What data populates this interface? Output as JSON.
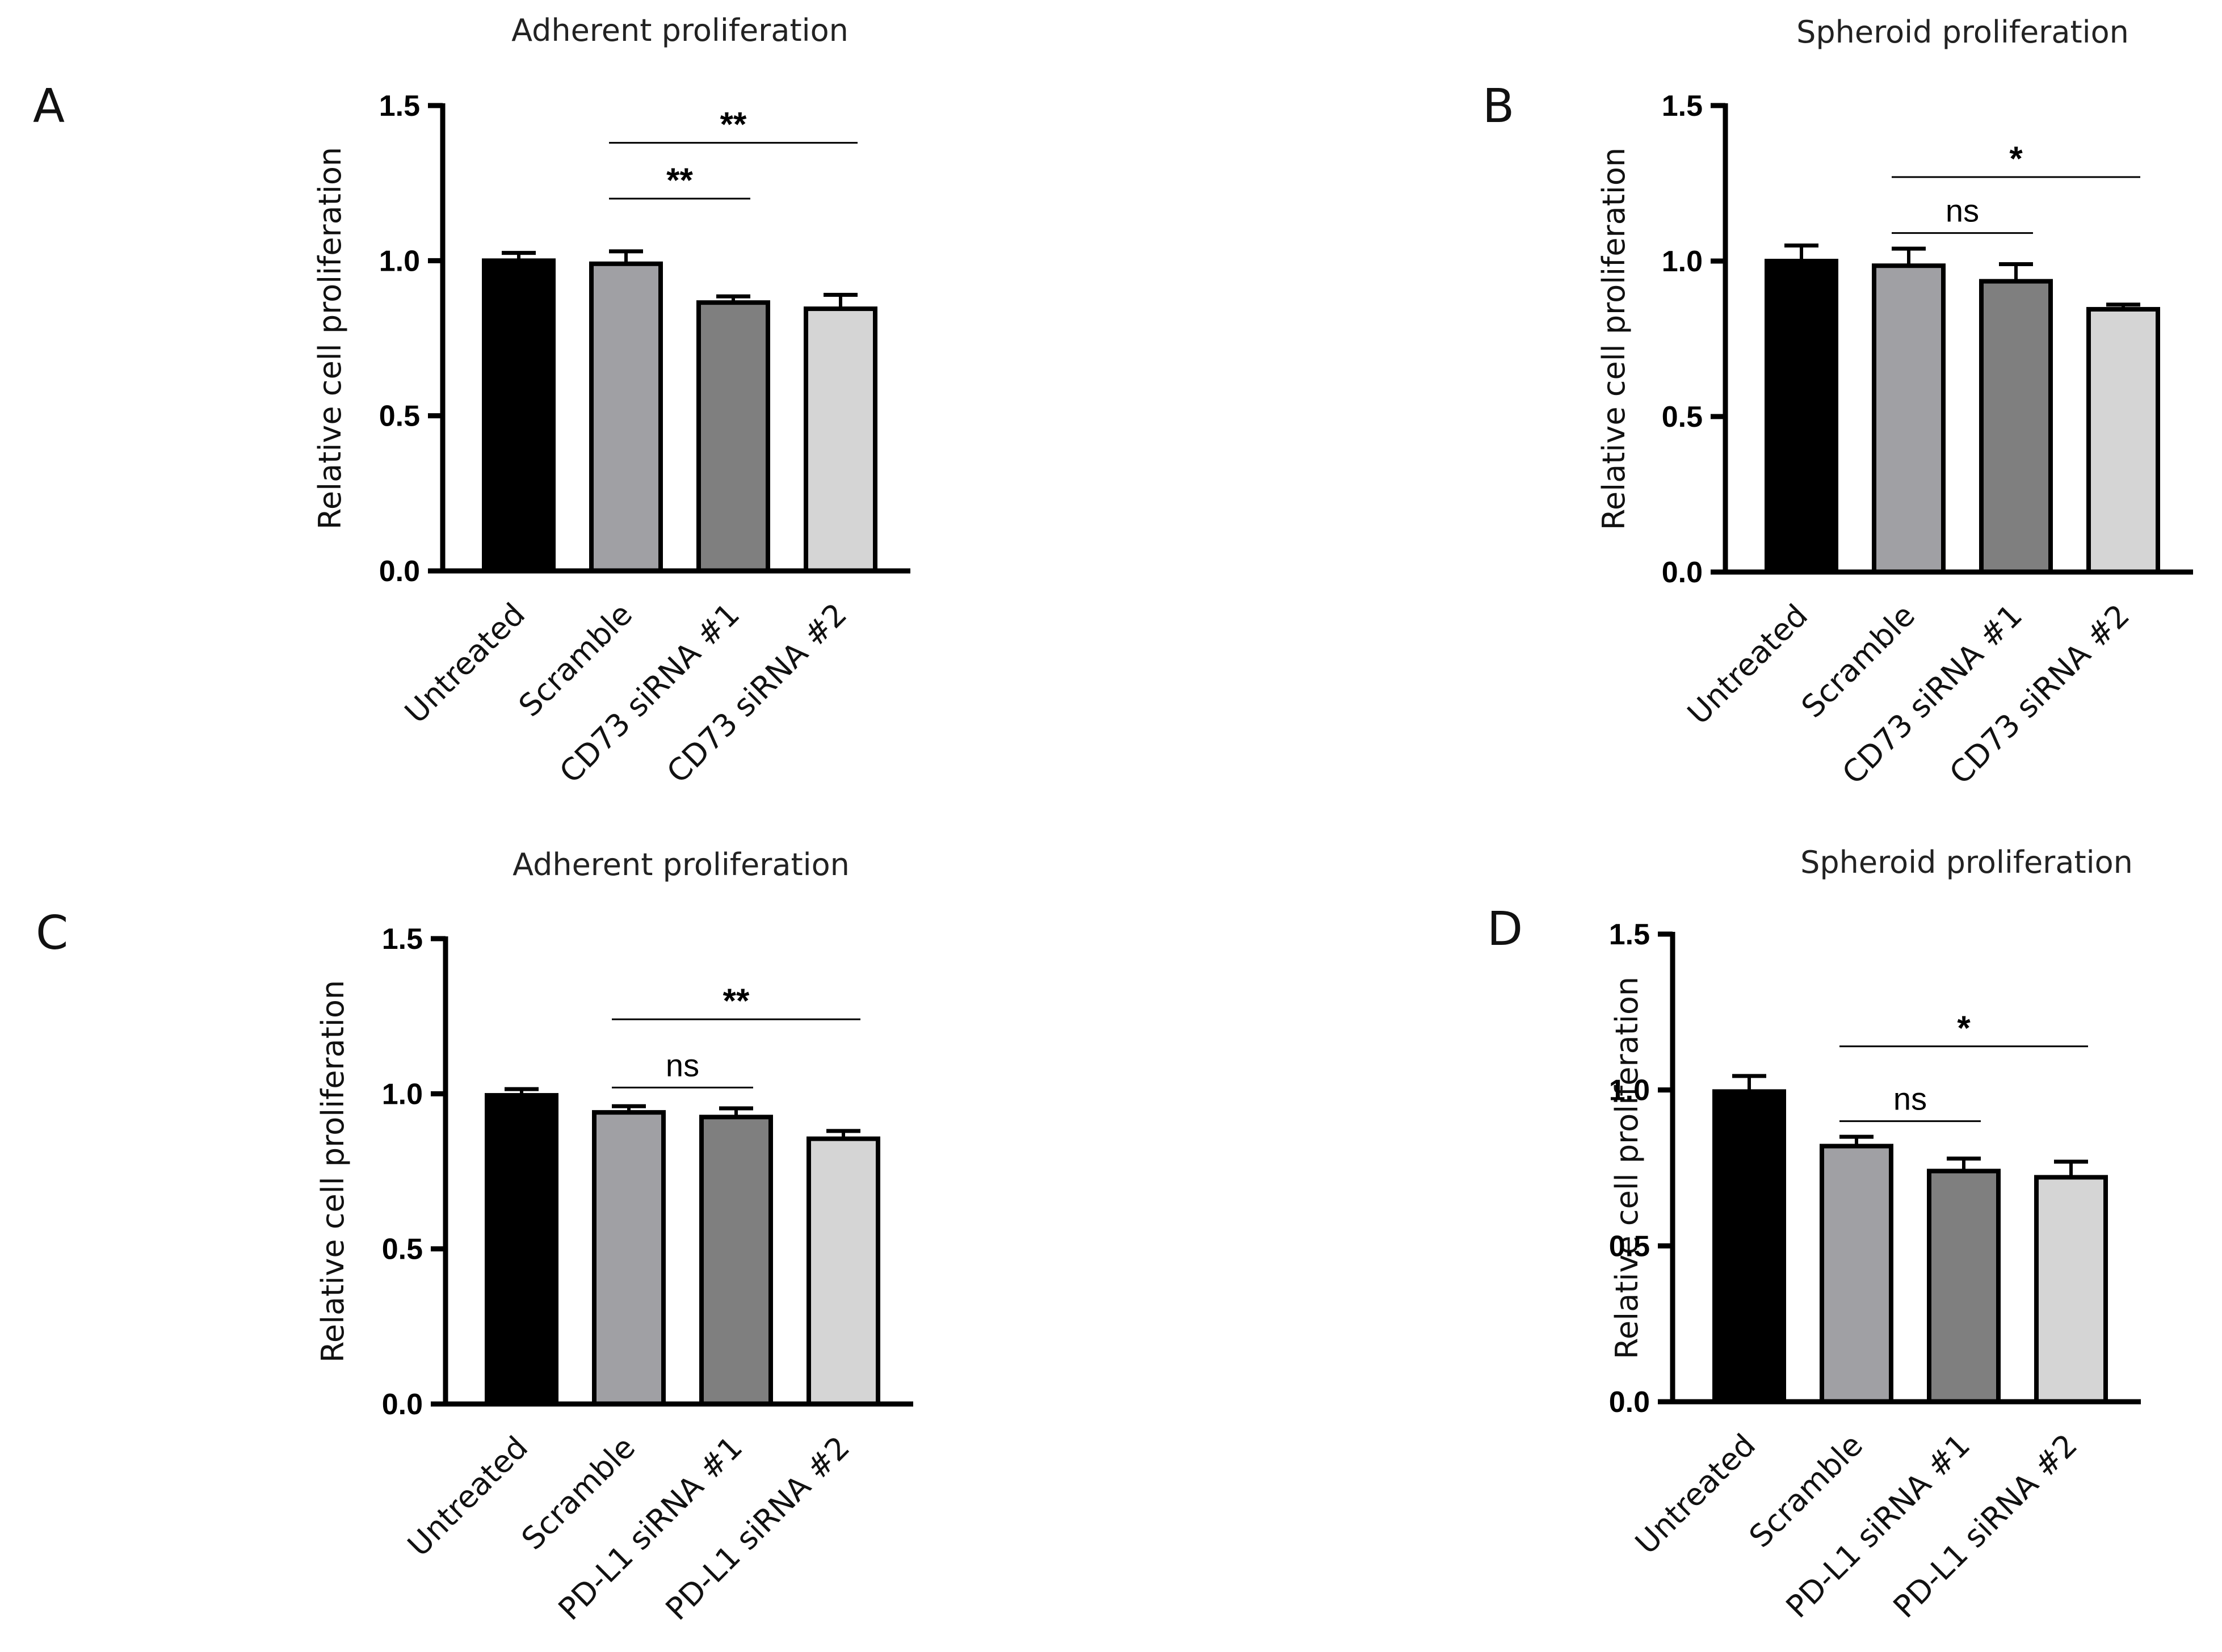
{
  "chart_data": [
    {
      "panel": "A",
      "type": "bar",
      "title": "Adherent proliferation",
      "ylabel": "Relative cell proliferation",
      "xlabel": "",
      "ylim": [
        0,
        1.5
      ],
      "yticks": [
        "0.0",
        "0.5",
        "1.0",
        "1.5"
      ],
      "categories": [
        "Untreated",
        "Scramble",
        "CD73 siRNA #1",
        "CD73 siRNA #2"
      ],
      "values": [
        1.0,
        0.99,
        0.865,
        0.845
      ],
      "errors": [
        0.025,
        0.04,
        0.02,
        0.045
      ],
      "colors": [
        "#000000",
        "#a0a0a4",
        "#7f7f7f",
        "#d5d5d5"
      ],
      "significance": [
        {
          "from": 1,
          "to": 2,
          "label": "**",
          "y": 1.2
        },
        {
          "from": 1,
          "to": 3,
          "label": "**",
          "y": 1.38
        }
      ]
    },
    {
      "panel": "B",
      "type": "bar",
      "title": "Spheroid proliferation",
      "ylabel": "Relative cell proliferation",
      "xlabel": "",
      "ylim": [
        0,
        1.5
      ],
      "yticks": [
        "0.0",
        "0.5",
        "1.0",
        "1.5"
      ],
      "categories": [
        "Untreated",
        "Scramble",
        "CD73 siRNA #1",
        "CD73 siRNA #2"
      ],
      "values": [
        1.0,
        0.985,
        0.935,
        0.845
      ],
      "errors": [
        0.05,
        0.055,
        0.055,
        0.015
      ],
      "colors": [
        "#000000",
        "#a0a0a4",
        "#7f7f7f",
        "#d5d5d5"
      ],
      "significance": [
        {
          "from": 1,
          "to": 2,
          "label": "ns",
          "y": 1.09
        },
        {
          "from": 1,
          "to": 3,
          "label": "*",
          "y": 1.27
        }
      ]
    },
    {
      "panel": "C",
      "type": "bar",
      "title": "Adherent proliferation",
      "ylabel": "Relative cell proliferation",
      "xlabel": "",
      "ylim": [
        0,
        1.5
      ],
      "yticks": [
        "0.0",
        "0.5",
        "1.0",
        "1.5"
      ],
      "categories": [
        "Untreated",
        "Scramble",
        "PD-L1 siRNA #1",
        "PD-L1 siRNA #2"
      ],
      "values": [
        0.995,
        0.94,
        0.925,
        0.855
      ],
      "errors": [
        0.02,
        0.02,
        0.028,
        0.025
      ],
      "colors": [
        "#000000",
        "#a0a0a4",
        "#7f7f7f",
        "#d5d5d5"
      ],
      "significance": [
        {
          "from": 1,
          "to": 2,
          "label": "ns",
          "y": 1.02
        },
        {
          "from": 1,
          "to": 3,
          "label": "**",
          "y": 1.24
        }
      ]
    },
    {
      "panel": "D",
      "type": "bar",
      "title": "Spheroid proliferation",
      "ylabel": "Relative cell proliferation",
      "xlabel": "",
      "ylim": [
        0,
        1.5
      ],
      "yticks": [
        "0.0",
        "0.5",
        "1.0",
        "1.5"
      ],
      "categories": [
        "Untreated",
        "Scramble",
        "PD-L1 siRNA #1",
        "PD-L1 siRNA #2"
      ],
      "values": [
        0.995,
        0.82,
        0.74,
        0.72
      ],
      "errors": [
        0.05,
        0.03,
        0.04,
        0.05
      ],
      "colors": [
        "#000000",
        "#a0a0a4",
        "#7f7f7f",
        "#d5d5d5"
      ],
      "significance": [
        {
          "from": 1,
          "to": 2,
          "label": "ns",
          "y": 0.9
        },
        {
          "from": 1,
          "to": 3,
          "label": "*",
          "y": 1.14
        }
      ]
    }
  ]
}
